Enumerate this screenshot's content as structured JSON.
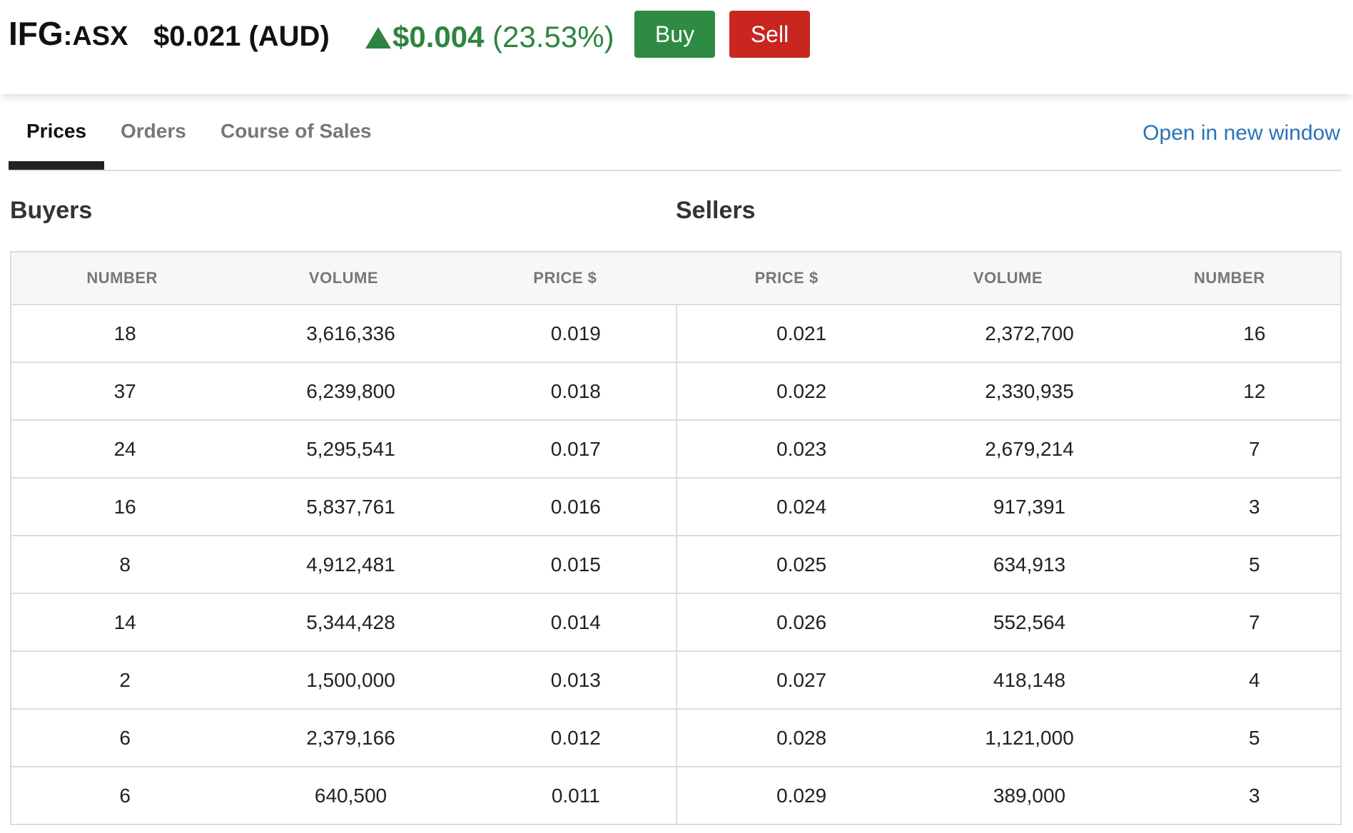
{
  "header": {
    "code": "IFG",
    "exchange": ":ASX",
    "price": "$0.021 (AUD)",
    "change_amount": "$0.004",
    "change_percent": "(23.53%)",
    "buy_label": "Buy",
    "sell_label": "Sell",
    "colors": {
      "up": "#2e8540",
      "buy": "#2f8a43",
      "sell": "#c8261f",
      "link": "#2a73b8"
    }
  },
  "tabs": [
    {
      "label": "Prices",
      "active": true
    },
    {
      "label": "Orders",
      "active": false
    },
    {
      "label": "Course of Sales",
      "active": false
    }
  ],
  "open_link": "Open in new window",
  "buyers_title": "Buyers",
  "sellers_title": "Sellers",
  "table": {
    "headers": [
      "NUMBER",
      "VOLUME",
      "PRICE $",
      "PRICE $",
      "VOLUME",
      "NUMBER"
    ],
    "rows": [
      [
        "18",
        "3,616,336",
        "0.019",
        "0.021",
        "2,372,700",
        "16"
      ],
      [
        "37",
        "6,239,800",
        "0.018",
        "0.022",
        "2,330,935",
        "12"
      ],
      [
        "24",
        "5,295,541",
        "0.017",
        "0.023",
        "2,679,214",
        "7"
      ],
      [
        "16",
        "5,837,761",
        "0.016",
        "0.024",
        "917,391",
        "3"
      ],
      [
        "8",
        "4,912,481",
        "0.015",
        "0.025",
        "634,913",
        "5"
      ],
      [
        "14",
        "5,344,428",
        "0.014",
        "0.026",
        "552,564",
        "7"
      ],
      [
        "2",
        "1,500,000",
        "0.013",
        "0.027",
        "418,148",
        "4"
      ],
      [
        "6",
        "2,379,166",
        "0.012",
        "0.028",
        "1,121,000",
        "5"
      ],
      [
        "6",
        "640,500",
        "0.011",
        "0.029",
        "389,000",
        "3"
      ]
    ]
  }
}
